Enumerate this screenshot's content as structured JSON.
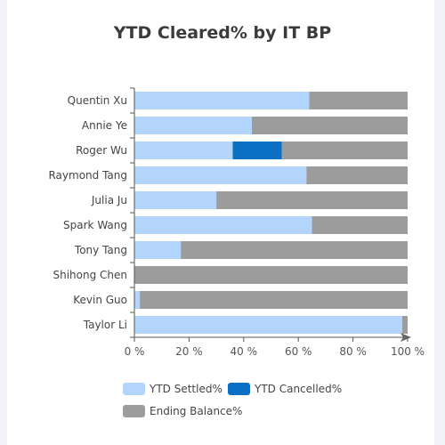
{
  "chart_data": {
    "type": "bar",
    "orientation": "horizontal",
    "stacked": true,
    "title": "YTD Cleared% by IT BP",
    "categories": [
      "Quentin Xu",
      "Annie Ye",
      "Roger Wu",
      "Raymond Tang",
      "Julia Ju",
      "Spark Wang",
      "Tony Tang",
      "Shihong Chen",
      "Kevin Guo",
      "Taylor Li"
    ],
    "series": [
      {
        "name": "YTD Settled%",
        "color": "#b3d5fb",
        "values": [
          64,
          43,
          36,
          63,
          30,
          65,
          17,
          0,
          2,
          98
        ]
      },
      {
        "name": "YTD Cancelled%",
        "color": "#0b70c4",
        "values": [
          0,
          0,
          18,
          0,
          0,
          0,
          0,
          0,
          0,
          0
        ]
      },
      {
        "name": "Ending Balance%",
        "color": "#9c9c9c",
        "values": [
          36,
          57,
          46,
          37,
          70,
          35,
          83,
          100,
          98,
          2
        ]
      }
    ],
    "xlim": [
      0,
      100
    ],
    "xticks": [
      "0 %",
      "20 %",
      "40 %",
      "60 %",
      "80 %",
      "100 %"
    ],
    "legend_position": "bottom-left",
    "grid": false
  }
}
